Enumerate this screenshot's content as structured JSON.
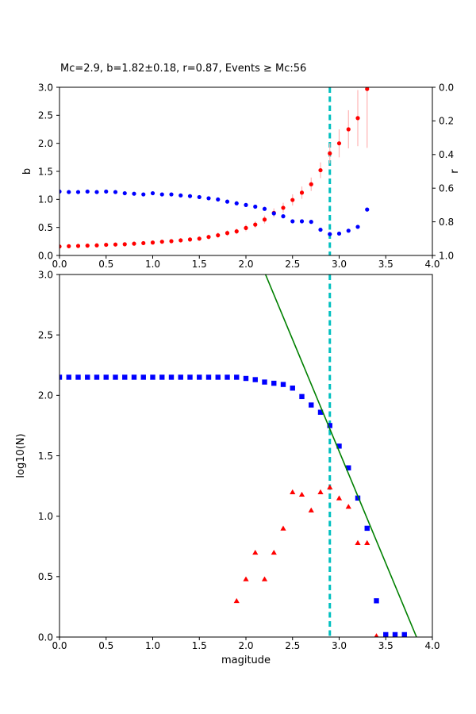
{
  "header": {
    "title": "Mc=2.9, b=1.82±0.18, r=0.87, Events ≥ Mc:56"
  },
  "colors": {
    "b_series": "#ff0000",
    "b_error": "#ffb3b3",
    "r_series": "#0000ff",
    "cumulative": "#0000ff",
    "bin_counts": "#ff0000",
    "fit_line": "#008000",
    "mc_line": "#00bfbf",
    "axis": "#000000"
  },
  "chart_data": [
    {
      "id": "top-plot",
      "type": "scatter",
      "title": "Mc=2.9, b=1.82±0.18, r=0.87, Events ≥ Mc:56",
      "xlabel": "",
      "ylabel_left": "b",
      "ylabel_right": "r",
      "xlim": [
        0.0,
        4.0
      ],
      "ylim_left": [
        0.0,
        3.0
      ],
      "ylim_right": [
        1.0,
        0.0
      ],
      "x_ticks": [
        0.0,
        0.5,
        1.0,
        1.5,
        2.0,
        2.5,
        3.0,
        3.5,
        4.0
      ],
      "y_ticks_left": [
        0.0,
        0.5,
        1.0,
        1.5,
        2.0,
        2.5,
        3.0
      ],
      "y_ticks_right": [
        0.0,
        0.2,
        0.4,
        0.6,
        0.8,
        1.0
      ],
      "grid": false,
      "legend": "none",
      "vline": {
        "x": 2.9,
        "style": "dashed"
      },
      "series": [
        {
          "name": "b-value-vs-cutoff",
          "marker": "circle",
          "axis": "left",
          "x": [
            0.0,
            0.1,
            0.2,
            0.3,
            0.4,
            0.5,
            0.6,
            0.7,
            0.8,
            0.9,
            1.0,
            1.1,
            1.2,
            1.3,
            1.4,
            1.5,
            1.6,
            1.7,
            1.8,
            1.9,
            2.0,
            2.1,
            2.2,
            2.3,
            2.4,
            2.5,
            2.6,
            2.7,
            2.8,
            2.9,
            3.0,
            3.1,
            3.2,
            3.3
          ],
          "y": [
            0.16,
            0.165,
            0.17,
            0.175,
            0.18,
            0.19,
            0.195,
            0.2,
            0.21,
            0.22,
            0.23,
            0.245,
            0.255,
            0.27,
            0.285,
            0.3,
            0.33,
            0.36,
            0.4,
            0.43,
            0.49,
            0.55,
            0.64,
            0.76,
            0.85,
            0.99,
            1.12,
            1.27,
            1.52,
            1.82,
            2.0,
            2.25,
            2.45,
            2.97
          ],
          "yerr": [
            0.02,
            0.02,
            0.02,
            0.02,
            0.02,
            0.02,
            0.02,
            0.03,
            0.03,
            0.03,
            0.03,
            0.03,
            0.03,
            0.04,
            0.04,
            0.04,
            0.04,
            0.05,
            0.05,
            0.05,
            0.06,
            0.06,
            0.07,
            0.08,
            0.09,
            0.1,
            0.11,
            0.12,
            0.14,
            0.18,
            0.25,
            0.34,
            0.5,
            1.05
          ]
        },
        {
          "name": "r-value-vs-cutoff",
          "marker": "circle",
          "axis": "right",
          "x": [
            0.0,
            0.1,
            0.2,
            0.3,
            0.4,
            0.5,
            0.6,
            0.7,
            0.8,
            0.9,
            1.0,
            1.1,
            1.2,
            1.3,
            1.4,
            1.5,
            1.6,
            1.7,
            1.8,
            1.9,
            2.0,
            2.1,
            2.2,
            2.3,
            2.4,
            2.5,
            2.6,
            2.7,
            2.8,
            2.9,
            3.0,
            3.1,
            3.2,
            3.3
          ],
          "y": [
            0.62,
            0.623,
            0.623,
            0.62,
            0.623,
            0.62,
            0.623,
            0.63,
            0.633,
            0.637,
            0.63,
            0.637,
            0.637,
            0.643,
            0.647,
            0.653,
            0.66,
            0.667,
            0.68,
            0.69,
            0.7,
            0.71,
            0.723,
            0.75,
            0.767,
            0.797,
            0.797,
            0.8,
            0.847,
            0.873,
            0.87,
            0.853,
            0.83,
            0.727
          ]
        }
      ]
    },
    {
      "id": "bottom-plot",
      "type": "scatter",
      "title": "",
      "xlabel": "magitude",
      "ylabel_left": "log10(N)",
      "xlim": [
        0.0,
        4.0
      ],
      "ylim_left": [
        0.0,
        3.0
      ],
      "x_ticks": [
        0.0,
        0.5,
        1.0,
        1.5,
        2.0,
        2.5,
        3.0,
        3.5,
        4.0
      ],
      "y_ticks_left": [
        0.0,
        0.5,
        1.0,
        1.5,
        2.0,
        2.5,
        3.0
      ],
      "grid": false,
      "legend": "none",
      "vline": {
        "x": 2.9,
        "style": "dashed"
      },
      "series": [
        {
          "name": "cumulative-event-counts",
          "marker": "square",
          "axis": "left",
          "x": [
            0.0,
            0.1,
            0.2,
            0.3,
            0.4,
            0.5,
            0.6,
            0.7,
            0.8,
            0.9,
            1.0,
            1.1,
            1.2,
            1.3,
            1.4,
            1.5,
            1.6,
            1.7,
            1.8,
            1.9,
            2.0,
            2.1,
            2.2,
            2.3,
            2.4,
            2.5,
            2.6,
            2.7,
            2.8,
            2.9,
            3.0,
            3.1,
            3.2,
            3.3,
            3.4,
            3.5,
            3.6,
            3.7
          ],
          "y": [
            2.15,
            2.15,
            2.15,
            2.15,
            2.15,
            2.15,
            2.15,
            2.15,
            2.15,
            2.15,
            2.15,
            2.15,
            2.15,
            2.15,
            2.15,
            2.15,
            2.15,
            2.15,
            2.15,
            2.15,
            2.14,
            2.13,
            2.11,
            2.1,
            2.09,
            2.06,
            1.99,
            1.92,
            1.86,
            1.75,
            1.58,
            1.4,
            1.15,
            0.9,
            0.3,
            0.02,
            0.02,
            0.02
          ]
        },
        {
          "name": "per-bin-event-counts",
          "marker": "triangle",
          "axis": "left",
          "x": [
            1.9,
            2.0,
            2.1,
            2.2,
            2.3,
            2.4,
            2.5,
            2.6,
            2.7,
            2.8,
            2.9,
            3.0,
            3.1,
            3.2,
            3.3,
            3.4
          ],
          "y": [
            0.3,
            0.48,
            0.7,
            0.48,
            0.7,
            0.9,
            1.2,
            1.18,
            1.05,
            1.2,
            1.24,
            1.15,
            1.08,
            0.78,
            0.78,
            0.01
          ]
        },
        {
          "name": "gutenberg-richter-fit-line",
          "marker": "line",
          "axis": "left",
          "x": [
            2.21,
            3.83
          ],
          "y": [
            3.0,
            0.0
          ]
        }
      ]
    }
  ]
}
